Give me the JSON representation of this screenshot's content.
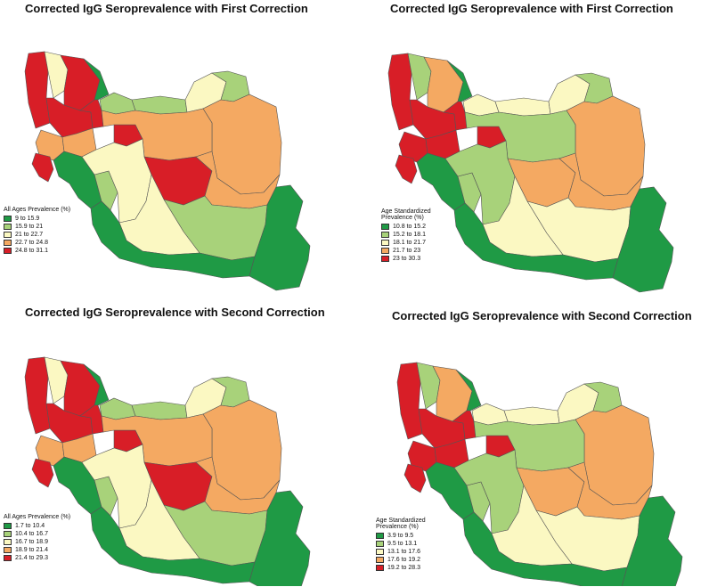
{
  "colors": {
    "dark_green": "#1f9a45",
    "light_green": "#a8d27a",
    "pale_yellow": "#fbf8c2",
    "orange": "#f4a962",
    "red": "#d81e27"
  },
  "maps": [
    {
      "title": "Corrected IgG Seroprevalence with First Correction",
      "legend_title": "All Ages Prevalence (%)",
      "legend": [
        "9 to 15.9",
        "15.9 to 21",
        "21 to 22.7",
        "22.7 to 24.8",
        "24.8 to 31.1"
      ],
      "provinces": {
        "nw_a": "red",
        "nw_b": "pale_yellow",
        "nw_c": "red",
        "n_1": "dark_green",
        "n_2": "light_green",
        "n_3": "light_green",
        "n_4": "pale_yellow",
        "ne_1": "light_green",
        "ne_2": "orange",
        "w_1": "red",
        "w_2": "red",
        "w_3": "orange",
        "w_4": "orange",
        "w_5": "red",
        "c_1": "orange",
        "sw_1": "red",
        "sw_2": "dark_green",
        "sw_3": "light_green",
        "c_2": "pale_yellow",
        "c_3": "red",
        "e_1": "orange",
        "e_2": "light_green",
        "s_1": "pale_yellow",
        "s_2": "dark_green",
        "se_1": "dark_green"
      }
    },
    {
      "title": "Corrected IgG Seroprevalence with First Correction",
      "legend_title": "Age Standardized\nPrevalence (%)",
      "legend": [
        "10.8 to 15.2",
        "15.2 to 18.1",
        "18.1 to 21.7",
        "21.7 to 23",
        "23 to 30.3"
      ],
      "provinces": {
        "nw_a": "red",
        "nw_b": "light_green",
        "nw_c": "orange",
        "n_1": "dark_green",
        "n_2": "pale_yellow",
        "n_3": "pale_yellow",
        "n_4": "pale_yellow",
        "ne_1": "light_green",
        "ne_2": "orange",
        "w_1": "red",
        "w_2": "red",
        "w_3": "red",
        "w_4": "red",
        "w_5": "red",
        "c_1": "light_green",
        "sw_1": "red",
        "sw_2": "dark_green",
        "sw_3": "light_green",
        "c_2": "light_green",
        "c_3": "orange",
        "e_1": "orange",
        "e_2": "pale_yellow",
        "s_1": "pale_yellow",
        "s_2": "dark_green",
        "se_1": "dark_green"
      }
    },
    {
      "title": "Corrected IgG Seroprevalence with Second Correction",
      "legend_title": "All Ages Prevalence (%)",
      "legend": [
        "1.7 to 10.4",
        "10.4 to 16.7",
        "16.7 to 18.9",
        "18.9 to 21.4",
        "21.4 to 29.3"
      ],
      "provinces": {
        "nw_a": "red",
        "nw_b": "pale_yellow",
        "nw_c": "red",
        "n_1": "dark_green",
        "n_2": "light_green",
        "n_3": "light_green",
        "n_4": "pale_yellow",
        "ne_1": "light_green",
        "ne_2": "orange",
        "w_1": "red",
        "w_2": "red",
        "w_3": "orange",
        "w_4": "orange",
        "w_5": "red",
        "c_1": "orange",
        "sw_1": "red",
        "sw_2": "dark_green",
        "sw_3": "light_green",
        "c_2": "pale_yellow",
        "c_3": "red",
        "e_1": "orange",
        "e_2": "light_green",
        "s_1": "pale_yellow",
        "s_2": "dark_green",
        "se_1": "dark_green"
      }
    },
    {
      "title": "Corrected IgG Seroprevalence with Second Correction",
      "legend_title": "Age Standardized\nPrevalence (%)",
      "legend": [
        "3.9 to 9.5",
        "9.5 to 13.1",
        "13.1 to 17.6",
        "17.6 to 19.2",
        "19.2 to 28.3"
      ],
      "provinces": {
        "nw_a": "red",
        "nw_b": "light_green",
        "nw_c": "orange",
        "n_1": "dark_green",
        "n_2": "pale_yellow",
        "n_3": "pale_yellow",
        "n_4": "pale_yellow",
        "ne_1": "light_green",
        "ne_2": "orange",
        "w_1": "red",
        "w_2": "red",
        "w_3": "red",
        "w_4": "red",
        "w_5": "red",
        "c_1": "light_green",
        "sw_1": "red",
        "sw_2": "dark_green",
        "sw_3": "light_green",
        "c_2": "light_green",
        "c_3": "orange",
        "e_1": "orange",
        "e_2": "pale_yellow",
        "s_1": "pale_yellow",
        "s_2": "dark_green",
        "se_1": "dark_green"
      }
    }
  ]
}
